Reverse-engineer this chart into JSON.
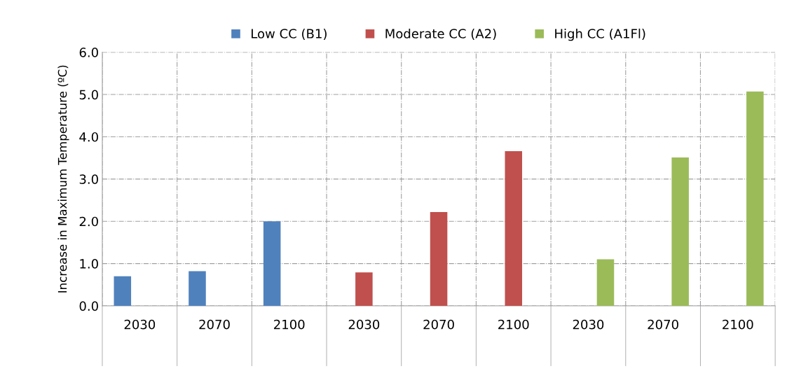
{
  "chart_data": {
    "type": "bar",
    "ylabel": "Increase in Maximum Temperature (ºC)",
    "categories": [
      "2030",
      "2070",
      "2100",
      "2030",
      "2070",
      "2100",
      "2030",
      "2070",
      "2100"
    ],
    "series": [
      {
        "name": "Low CC (B1)",
        "color": "#4f81bd",
        "values": [
          0.7,
          0.82,
          2.0,
          null,
          null,
          null,
          null,
          null,
          null
        ]
      },
      {
        "name": "Moderate CC (A2)",
        "color": "#c0504d",
        "values": [
          null,
          null,
          null,
          0.79,
          2.22,
          3.66,
          null,
          null,
          null
        ]
      },
      {
        "name": "High CC (A1Fl)",
        "color": "#9bbb59",
        "values": [
          null,
          null,
          null,
          null,
          null,
          null,
          1.1,
          3.51,
          5.07
        ]
      }
    ],
    "ylim": [
      0,
      6
    ],
    "yticks": [
      {
        "value": 0,
        "label": "0.0"
      },
      {
        "value": 1,
        "label": "1.0"
      },
      {
        "value": 2,
        "label": "2.0"
      },
      {
        "value": 3,
        "label": "3.0"
      },
      {
        "value": 4,
        "label": "4.0"
      },
      {
        "value": 5,
        "label": "5.0"
      },
      {
        "value": 6,
        "label": "6.0"
      }
    ],
    "grid": true,
    "legend": "top"
  }
}
